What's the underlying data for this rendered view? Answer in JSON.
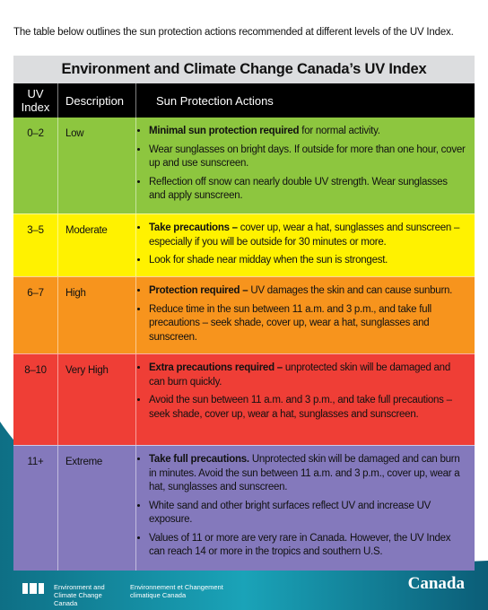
{
  "intro": "The table below outlines the sun protection actions recommended at different levels of the UV Index.",
  "table": {
    "title": "Environment and Climate Change Canada’s UV Index",
    "headers": [
      "UV Index",
      "Description",
      "Sun Protection Actions"
    ],
    "rows": [
      {
        "index": "0–2",
        "description": "Low",
        "color": "#8dc63f",
        "height": 107,
        "actions": [
          {
            "bold": "Minimal sun protection required",
            "text": " for normal activity."
          },
          {
            "text": "Wear sunglasses on bright days. If outside for more than one hour, cover up and use sunscreen."
          },
          {
            "text": "Reflection off snow can nearly double UV strength. Wear sunglasses and apply sunscreen."
          }
        ]
      },
      {
        "index": "3–5",
        "description": "Moderate",
        "color": "#fff200",
        "height": 69,
        "actions": [
          {
            "bold": "Take precautions –",
            "text": " cover up, wear a hat, sunglasses and sunscreen – especially if you will be outside for 30 minutes or more."
          },
          {
            "text": "Look for shade near midday when the sun is strongest."
          }
        ]
      },
      {
        "index": "6–7",
        "description": "High",
        "color": "#f7941d",
        "height": 85,
        "actions": [
          {
            "bold": "Protection required –",
            "text": " UV damages the skin and can cause sunburn."
          },
          {
            "text": "Reduce time in the sun between 11 a.m. and 3 p.m., and take full precautions – seek shade, cover up, wear a hat, sunglasses and sunscreen."
          }
        ]
      },
      {
        "index": "8–10",
        "description": "Very High",
        "color": "#ef3e36",
        "height": 101,
        "actions": [
          {
            "bold": "Extra precautions required –",
            "text": " unprotected skin will be damaged and can burn quickly."
          },
          {
            "text": "Avoid the sun between 11 a.m. and 3 p.m., and take full precautions – seek shade, cover up, wear a hat, sunglasses and sunscreen."
          }
        ]
      },
      {
        "index": "11+",
        "description": "Extreme",
        "color": "#8479bc",
        "height": 139,
        "actions": [
          {
            "bold": "Take full precautions.",
            "text": " Unprotected skin will be damaged and can burn in minutes. Avoid the sun between 11 a.m. and 3 p.m., cover up, wear a hat, sunglasses and sunscreen."
          },
          {
            "text": "White sand and other bright surfaces reflect UV and increase UV exposure."
          },
          {
            "text": "Values of 11 or more are very rare in Canada. However, the UV Index can reach 14 or more in the tropics and southern U.S."
          }
        ]
      }
    ]
  },
  "footer": {
    "department_en": "Environment and Climate Change Canada",
    "department_fr": "Environnement et Changement climatique Canada",
    "wordmark": "Canada"
  }
}
